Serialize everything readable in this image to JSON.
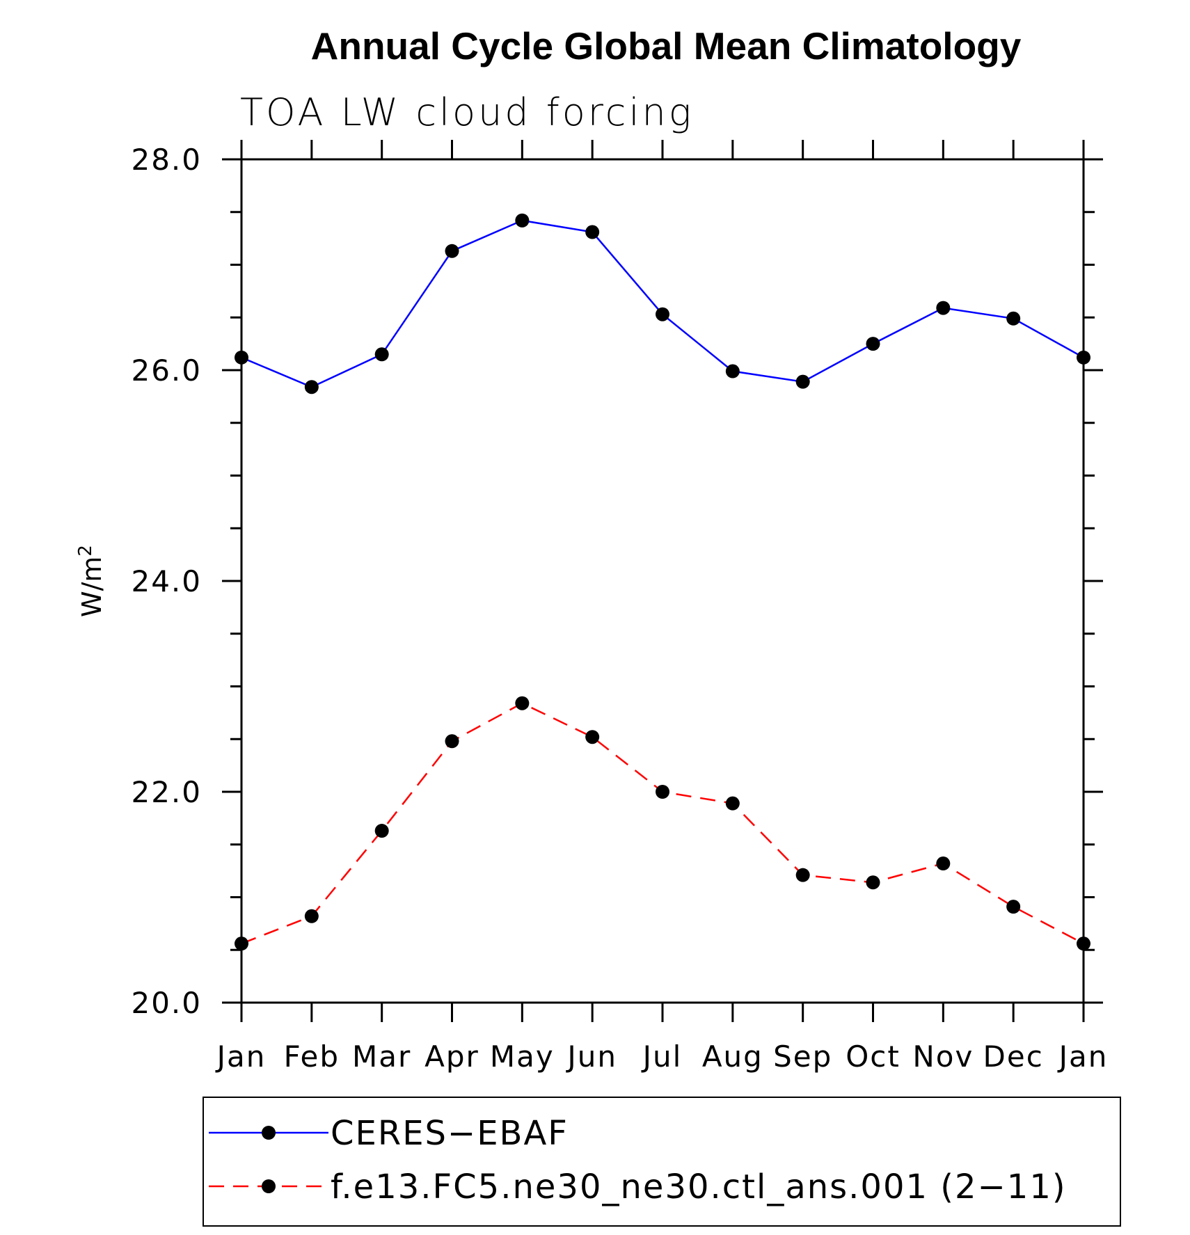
{
  "chart_data": {
    "type": "line",
    "title": "Annual Cycle Global Mean Climatology",
    "subtitle": "TOA LW cloud forcing",
    "ylabel": "W/m",
    "ylabel_superscript": "2",
    "xlabel": "",
    "categories": [
      "Jan",
      "Feb",
      "Mar",
      "Apr",
      "May",
      "Jun",
      "Jul",
      "Aug",
      "Sep",
      "Oct",
      "Nov",
      "Dec",
      "Jan"
    ],
    "ylim": [
      20.0,
      28.0
    ],
    "yticks": [
      20.0,
      22.0,
      24.0,
      26.0,
      28.0
    ],
    "ytick_labels": [
      "20.0",
      "22.0",
      "24.0",
      "26.0",
      "28.0"
    ],
    "minor_y_step": 0.5,
    "grid": false,
    "legend_position": "bottom",
    "series": [
      {
        "name": "CERES−EBAF",
        "color": "#0000ff",
        "dash": "solid",
        "values": [
          26.12,
          25.84,
          26.15,
          27.13,
          27.42,
          27.31,
          26.53,
          25.99,
          25.89,
          26.25,
          26.59,
          26.49,
          26.12
        ]
      },
      {
        "name": "f.e13.FC5.ne30_ne30.ctl_ans.001 (2−11)",
        "color": "#ff0000",
        "dash": "dashed",
        "values": [
          20.56,
          20.82,
          21.63,
          22.48,
          22.84,
          22.52,
          22.0,
          21.89,
          21.21,
          21.14,
          21.32,
          20.91,
          20.56
        ]
      }
    ]
  }
}
